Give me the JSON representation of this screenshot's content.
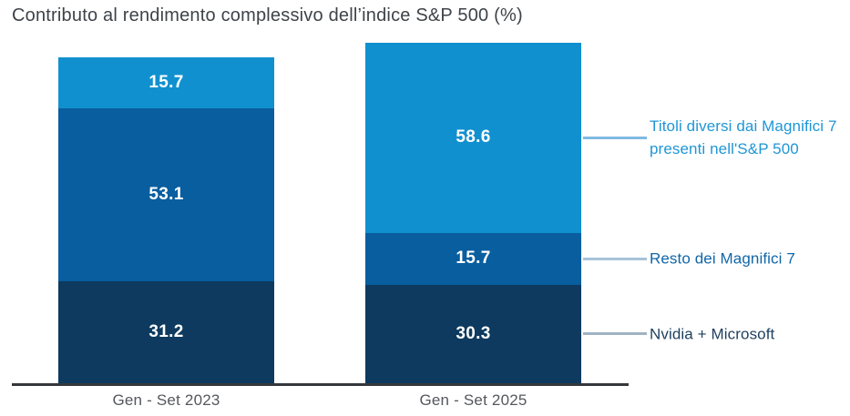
{
  "title": "Contributo al rendimento complessivo dell’indice S&P 500 (%)",
  "chart_data": {
    "type": "bar",
    "variant": "stacked-column",
    "title": "Contributo al rendimento complessivo dell’indice S&P 500 (%)",
    "unit": "%",
    "categories": [
      "Gen - Set 2023",
      "Gen - Set 2025"
    ],
    "series": [
      {
        "name": "Nvidia + Microsoft",
        "values": [
          31.2,
          30.3
        ],
        "color": "#0d3a5e",
        "legend_text_color": "#1d3e5f",
        "connector_line_color": "#a0b3c2"
      },
      {
        "name": "Resto dei Magnifici 7",
        "values": [
          53.1,
          15.7
        ],
        "color": "#085e9f",
        "legend_text_color": "#1166a8",
        "connector_line_color": "#a7c3d9"
      },
      {
        "name": "Titoli diversi dai Magnifici 7 presenti nell'S&P 500",
        "values": [
          15.7,
          58.6
        ],
        "color": "#1190cf",
        "legend_text_color": "#1f96d6",
        "connector_line_color": "#7fbae3"
      }
    ],
    "value_label_color": "#ffffff",
    "axis_line_color": "#34383b",
    "category_label_color": "#55575c",
    "legend_position": "right",
    "grid": false,
    "ylim": [
      0,
      104.6
    ],
    "totals": [
      100.0,
      104.6
    ]
  }
}
